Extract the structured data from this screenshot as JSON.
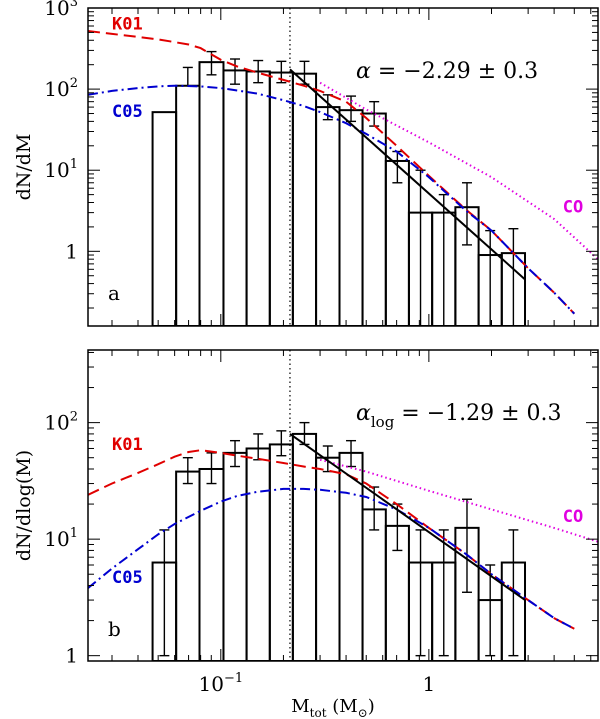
{
  "chart_data": [
    {
      "panel": "a",
      "type": "line",
      "ylabel": "dN/dM",
      "x_log": true,
      "y_log": true,
      "xlim": [
        0.023,
        6.5
      ],
      "ylim": [
        0.12,
        1000
      ],
      "yticks": [
        {
          "v": 1000,
          "label": "10",
          "sup": "3"
        },
        {
          "v": 100,
          "label": "10",
          "sup": "2"
        },
        {
          "v": 10,
          "label": "10",
          "sup": "1"
        },
        {
          "v": 1,
          "label": "1",
          "sup": ""
        }
      ],
      "vline_x": 0.215,
      "annotation": {
        "greek": "α",
        "sub": "",
        "text": " = −2.29 ± 0.3"
      },
      "histogram": {
        "edges": [
          0.047,
          0.061,
          0.079,
          0.103,
          0.133,
          0.172,
          0.222,
          0.287,
          0.372,
          0.48,
          0.621,
          0.802,
          1.037,
          1.341,
          1.734,
          2.241,
          2.898
        ],
        "counts": [
          52,
          110,
          215,
          170,
          165,
          160,
          155,
          60,
          55,
          50,
          13,
          3,
          3,
          3.5,
          0.9,
          0.95
        ],
        "err_low": [
          0,
          185,
          150,
          115,
          120,
          120,
          115,
          42,
          40,
          35,
          7,
          0,
          0,
          1.2,
          0,
          0
        ],
        "err_high": [
          0,
          110,
          290,
          235,
          225,
          220,
          220,
          85,
          82,
          70,
          17,
          10,
          5,
          7,
          1.8,
          1.9
        ]
      },
      "series": [
        {
          "name": "K01",
          "color": "#e00000",
          "style": "dashed",
          "x": [
            0.023,
            0.03,
            0.04,
            0.05,
            0.06,
            0.07,
            0.08,
            0.1,
            0.12,
            0.15,
            0.2,
            0.25,
            0.3,
            0.4,
            0.5,
            0.7,
            1.0,
            1.5,
            2.0,
            3.0,
            4.0,
            5.0
          ],
          "y": [
            520,
            480,
            440,
            410,
            380,
            355,
            320,
            230,
            190,
            160,
            130,
            110,
            95,
            70,
            44,
            20,
            8.5,
            3.3,
            1.8,
            0.62,
            0.31,
            0.17
          ]
        },
        {
          "name": "C05",
          "color": "#0000d0",
          "style": "dashdot",
          "x": [
            0.023,
            0.03,
            0.04,
            0.05,
            0.06,
            0.08,
            0.1,
            0.12,
            0.15,
            0.2,
            0.25,
            0.3,
            0.4,
            0.5,
            0.7,
            1.0,
            1.5,
            2.0,
            3.0,
            4.0,
            5.0
          ],
          "y": [
            85,
            95,
            103,
            108,
            110,
            108,
            103,
            96,
            88,
            73,
            62,
            52,
            38,
            28,
            17,
            8.2,
            3.2,
            1.8,
            0.62,
            0.31,
            0.17
          ]
        },
        {
          "name": "CO",
          "color": "#e000e0",
          "style": "dotted",
          "x": [
            0.3,
            0.5,
            1.0,
            2.0,
            4.0,
            6.5
          ],
          "y": [
            120,
            56,
            22,
            8.2,
            2.5,
            0.8
          ]
        }
      ],
      "fit": {
        "x": [
          0.215,
          2.9
        ],
        "y": [
          175,
          0.45
        ]
      },
      "labels": [
        {
          "text": "K01",
          "x": 0.03,
          "y": 540,
          "color": "#e00000"
        },
        {
          "text": "C05",
          "x": 0.03,
          "y": 45,
          "color": "#0000d0"
        },
        {
          "text": "CO",
          "x": 4.4,
          "y": 3.0,
          "color": "#e000e0"
        }
      ]
    },
    {
      "panel": "b",
      "type": "line",
      "ylabel": "dN/dlog(M)",
      "xlabel": "M",
      "xlabel_sub": "tot",
      "xlabel_units": "(M",
      "xlabel_units_sub": "⊙",
      "xlabel_units_end": ")",
      "x_log": true,
      "y_log": true,
      "xlim": [
        0.023,
        6.5
      ],
      "ylim": [
        0.9,
        420
      ],
      "xticks": [
        {
          "v": 0.1,
          "label": "10",
          "sup": "−1"
        },
        {
          "v": 1,
          "label": "1",
          "sup": ""
        }
      ],
      "yticks": [
        {
          "v": 100,
          "label": "10",
          "sup": "2"
        },
        {
          "v": 10,
          "label": "10",
          "sup": "1"
        },
        {
          "v": 1,
          "label": "1",
          "sup": ""
        }
      ],
      "vline_x": 0.215,
      "annotation": {
        "greek": "α",
        "sub": "log",
        "text": " = −1.29 ± 0.3"
      },
      "histogram": {
        "edges": [
          0.047,
          0.061,
          0.079,
          0.103,
          0.133,
          0.172,
          0.222,
          0.287,
          0.372,
          0.48,
          0.621,
          0.802,
          1.037,
          1.341,
          1.734,
          2.241,
          2.898
        ],
        "counts": [
          6.3,
          38,
          40,
          55,
          60,
          65,
          80,
          50,
          55,
          18,
          13,
          6.3,
          6.3,
          12.5,
          3,
          6.3
        ],
        "err_low": [
          1,
          30,
          30,
          42,
          48,
          52,
          65,
          38,
          42,
          12,
          8,
          1,
          1,
          3.5,
          1,
          1
        ],
        "err_high": [
          12,
          50,
          55,
          70,
          80,
          85,
          100,
          63,
          70,
          28,
          20,
          12,
          12,
          22,
          6,
          12
        ]
      },
      "series": [
        {
          "name": "K01",
          "color": "#e00000",
          "style": "dashed",
          "x": [
            0.023,
            0.03,
            0.04,
            0.05,
            0.06,
            0.07,
            0.08,
            0.1,
            0.12,
            0.15,
            0.2,
            0.25,
            0.3,
            0.4,
            0.5,
            0.7,
            1.0,
            1.5,
            2.0,
            3.0,
            4.0,
            5.0
          ],
          "y": [
            24,
            30,
            37,
            44,
            51,
            56,
            58,
            55,
            52,
            49,
            45,
            42,
            40,
            36,
            30,
            20,
            12.5,
            7.5,
            5,
            3,
            2.1,
            1.7
          ]
        },
        {
          "name": "C05",
          "color": "#0000d0",
          "style": "dashdot",
          "x": [
            0.023,
            0.03,
            0.04,
            0.05,
            0.06,
            0.08,
            0.1,
            0.12,
            0.15,
            0.2,
            0.25,
            0.3,
            0.4,
            0.5,
            0.7,
            1.0,
            1.5,
            2.0,
            3.0,
            4.0,
            5.0
          ],
          "y": [
            3.8,
            5.6,
            8.2,
            11,
            13.5,
            17.5,
            21,
            23.5,
            25.5,
            27,
            27,
            26.5,
            25,
            23,
            18,
            12.5,
            7.5,
            5,
            3,
            2.1,
            1.7
          ]
        },
        {
          "name": "CO",
          "color": "#e000e0",
          "style": "dotted",
          "x": [
            0.3,
            0.5,
            1.0,
            2.0,
            4.0,
            6.5
          ],
          "y": [
            48,
            38,
            26,
            18,
            12.5,
            9.5
          ]
        }
      ],
      "fit": {
        "x": [
          0.215,
          2.9
        ],
        "y": [
          80,
          3
        ]
      },
      "labels": [
        {
          "text": "K01",
          "x": 0.03,
          "y": 58,
          "color": "#e00000"
        },
        {
          "text": "C05",
          "x": 0.03,
          "y": 4.2,
          "color": "#0000d0"
        },
        {
          "text": "CO",
          "x": 4.4,
          "y": 14,
          "color": "#e000e0"
        }
      ]
    }
  ],
  "panel_letters": [
    "a",
    "b"
  ]
}
